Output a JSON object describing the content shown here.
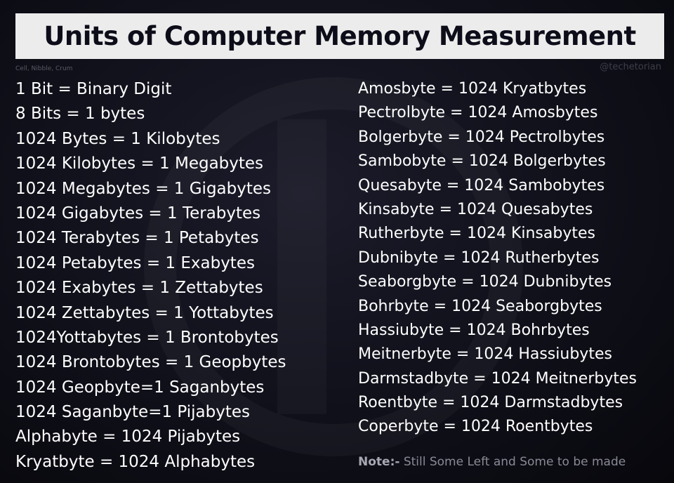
{
  "title": "Units of Computer Memory Measurement",
  "caption_note": "Cell, Nibble, Crum",
  "credit": "@techetorian",
  "left_column": [
    "1 Bit = Binary Digit",
    "8 Bits = 1 bytes",
    "1024 Bytes = 1 Kilobytes",
    "1024 Kilobytes = 1 Megabytes",
    "1024 Megabytes = 1 Gigabytes",
    "1024 Gigabytes = 1 Terabytes",
    "1024 Terabytes = 1 Petabytes",
    "1024 Petabytes = 1 Exabytes",
    "1024 Exabytes = 1 Zettabytes",
    "1024 Zettabytes = 1 Yottabytes",
    "1024Yottabytes = 1 Brontobytes",
    "1024 Brontobytes = 1 Geopbytes",
    "1024 Geopbyte=1 Saganbytes",
    "1024 Saganbyte=1 Pijabytes",
    "Alphabyte = 1024 Pijabytes",
    "Kryatbyte = 1024 Alphabytes"
  ],
  "right_column": [
    "Amosbyte = 1024 Kryatbytes",
    "Pectrolbyte = 1024 Amosbytes",
    "Bolgerbyte = 1024 Pectrolbytes",
    "Sambobyte = 1024 Bolgerbytes",
    "Quesabyte = 1024 Sambobytes",
    "Kinsabyte = 1024 Quesabytes",
    "Rutherbyte = 1024 Kinsabytes",
    "Dubnibyte = 1024 Rutherbytes",
    "Seaborgbyte = 1024 Dubnibytes",
    "Bohrbyte = 1024 Seaborgbytes",
    "Hassiubyte = 1024 Bohrbytes",
    "Meitnerbyte = 1024 Hassiubytes",
    "Darmstadbyte = 1024 Meitnerbytes",
    "Roentbyte = 1024 Darmstadbytes",
    "Coperbyte = 1024 Roentbytes"
  ],
  "footnote": {
    "label": "Note:-",
    "text": " Still Some Left and Some to be made"
  }
}
